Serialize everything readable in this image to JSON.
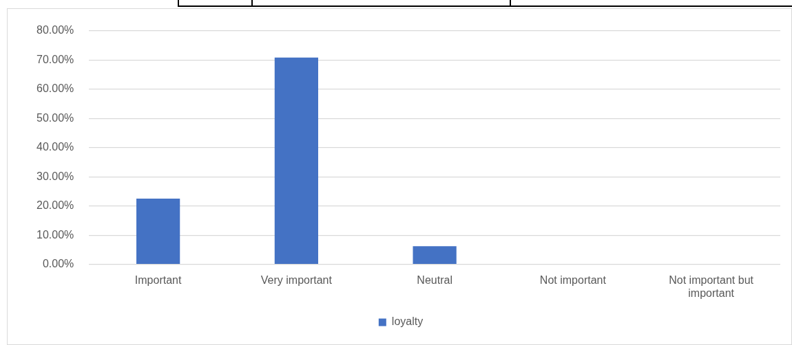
{
  "chart_data": {
    "type": "bar",
    "categories": [
      "Important",
      "Very important",
      "Neutral",
      "Not important",
      "Not important but important"
    ],
    "series": [
      {
        "name": "loyalty",
        "color": "#4472c4",
        "values": [
          22.5,
          70.8,
          6.2,
          0,
          0
        ]
      }
    ],
    "ylim": [
      0,
      80
    ],
    "yticks": [
      {
        "value": 0,
        "label": "0.00%"
      },
      {
        "value": 10,
        "label": "10.00%"
      },
      {
        "value": 20,
        "label": "20.00%"
      },
      {
        "value": 30,
        "label": "30.00%"
      },
      {
        "value": 40,
        "label": "40.00%"
      },
      {
        "value": 50,
        "label": "50.00%"
      },
      {
        "value": 60,
        "label": "60.00%"
      },
      {
        "value": 70,
        "label": "70.00%"
      },
      {
        "value": 80,
        "label": "80.00%"
      }
    ],
    "grid": "y",
    "legend": "bottom"
  }
}
